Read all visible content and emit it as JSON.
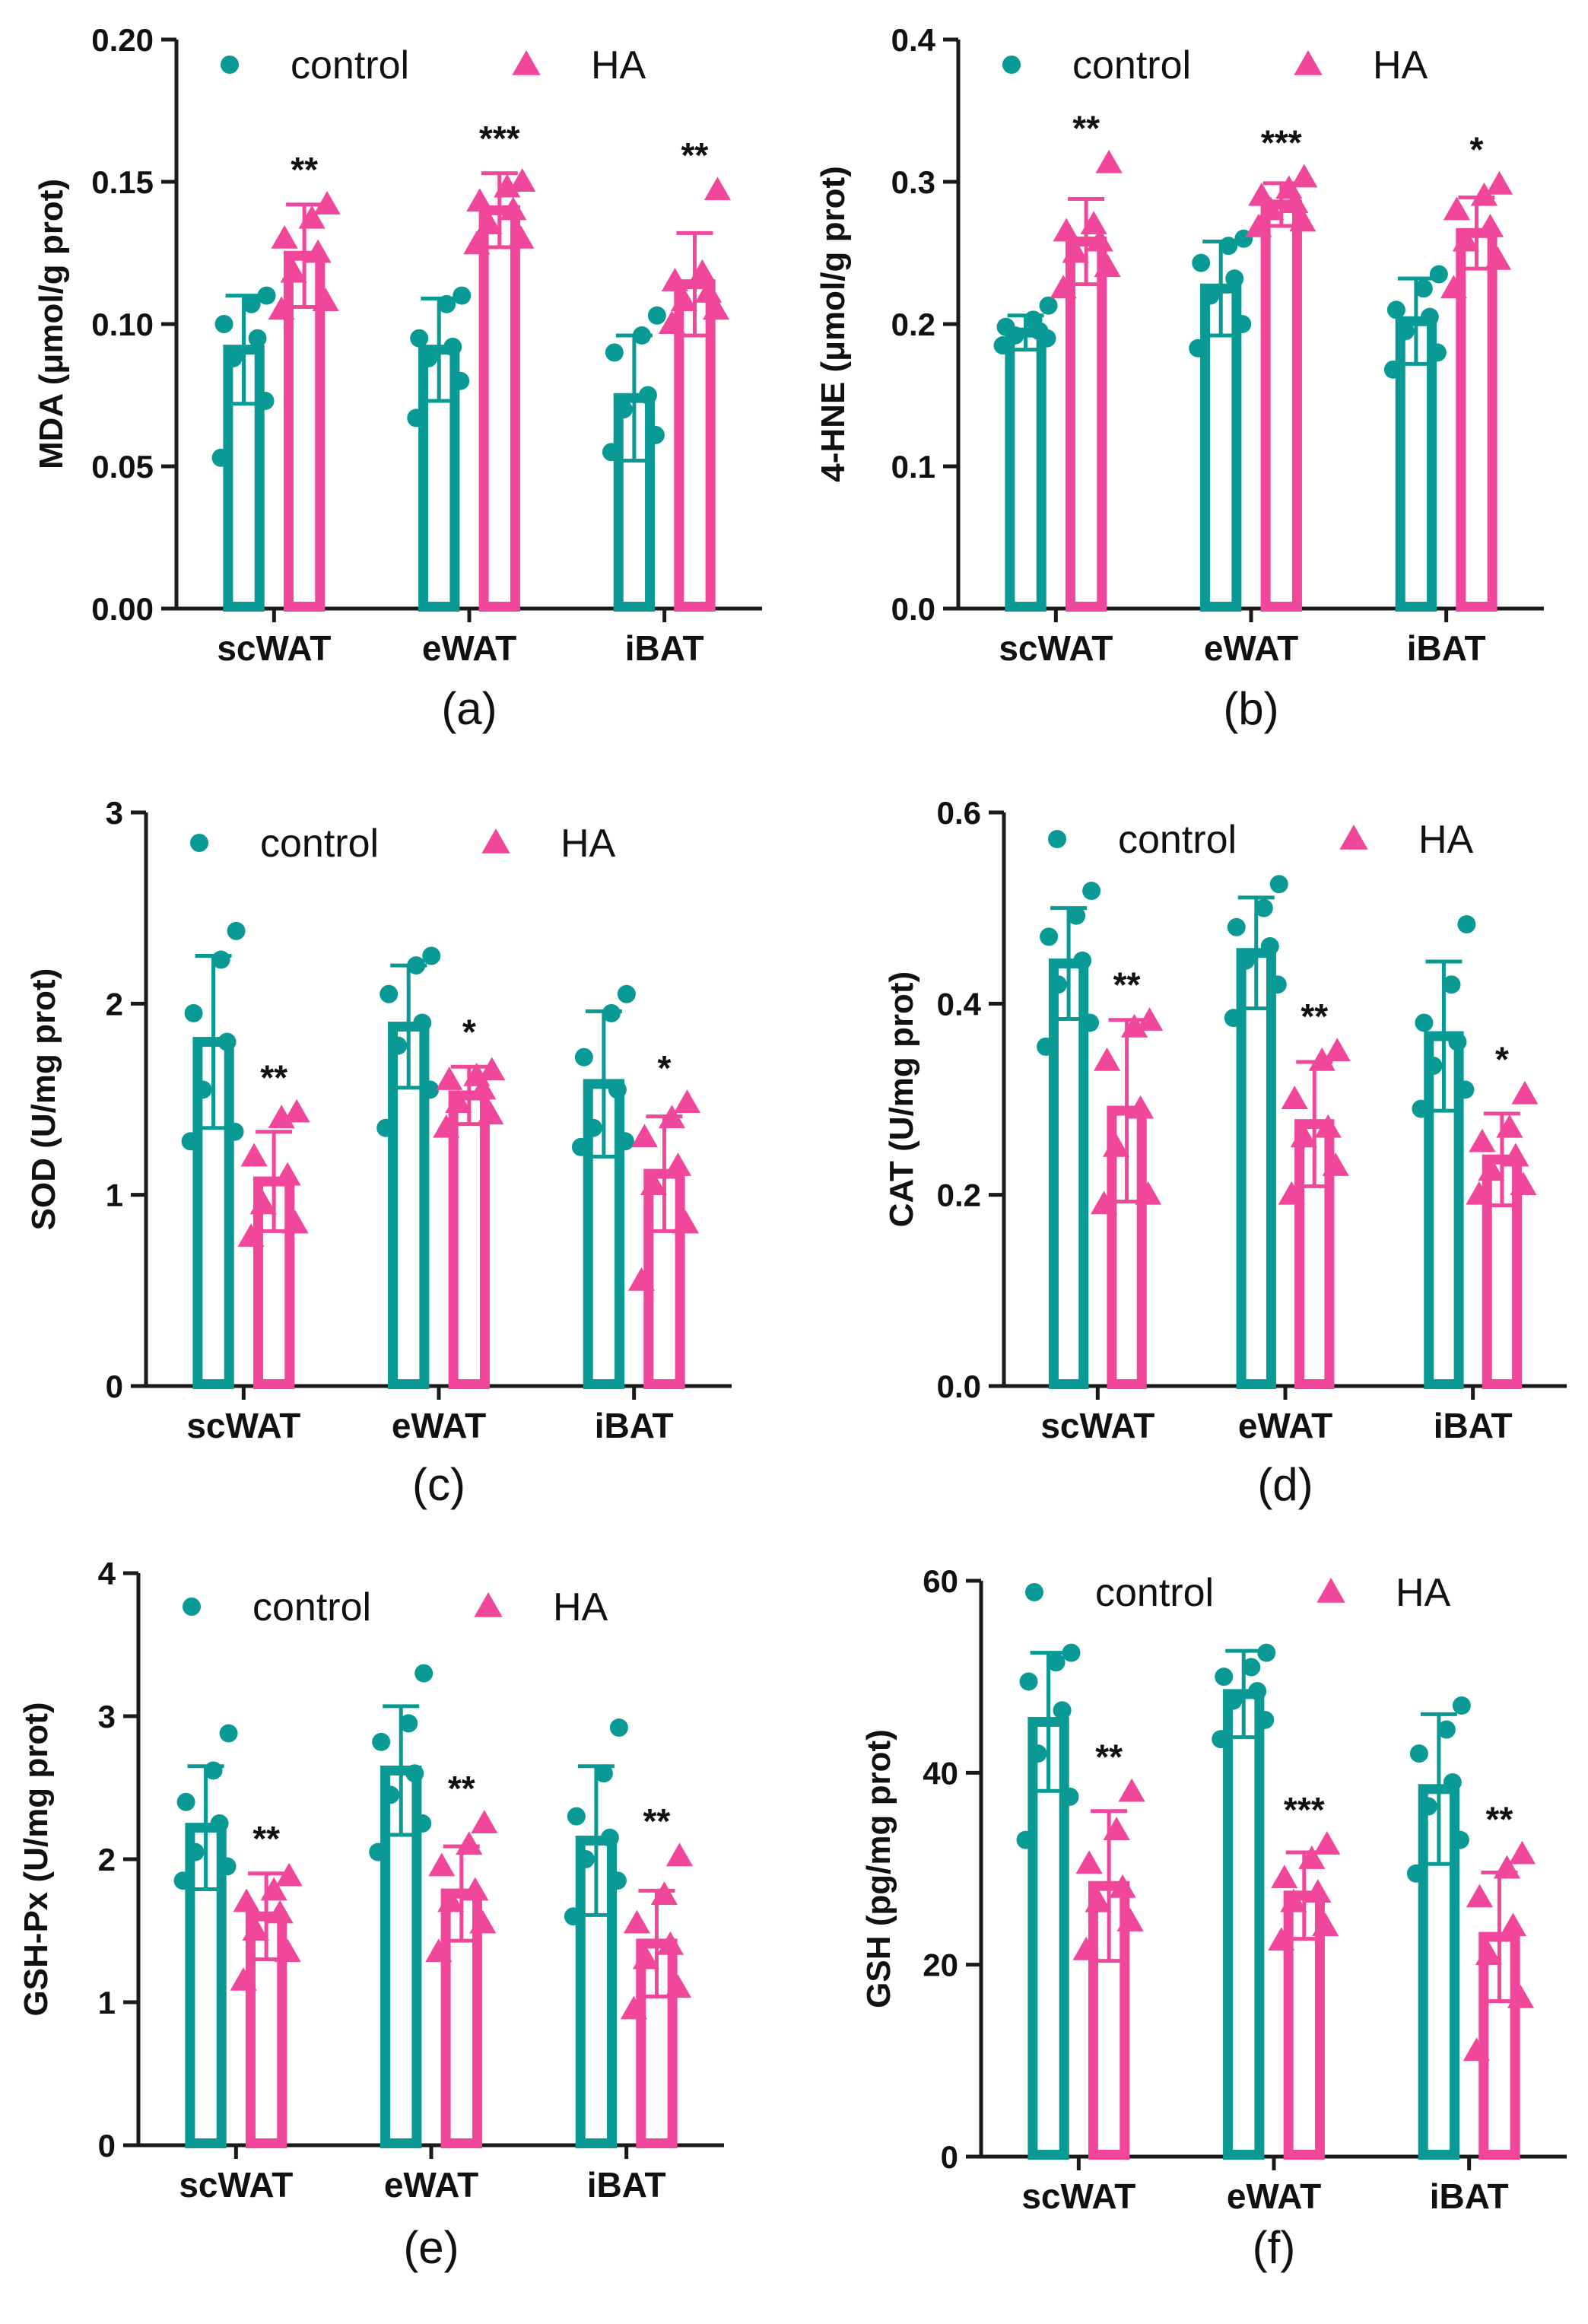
{
  "colors": {
    "control": "#0a9a96",
    "ha": "#f0479a",
    "axis": "#1a1a1a"
  },
  "chart_data": [
    {
      "type": "bar",
      "panel_label": "(a)",
      "ylabel": "MDA (μmol/g prot)",
      "categories": [
        "scWAT",
        "eWAT",
        "iBAT"
      ],
      "ylim": [
        0,
        0.2
      ],
      "yticks": [
        "0.00",
        "0.05",
        "0.10",
        "0.15",
        "0.20"
      ],
      "legend": [
        "control",
        "HA"
      ],
      "series": [
        {
          "name": "control",
          "values": [
            0.091,
            0.091,
            0.074
          ],
          "errors": [
            0.019,
            0.018,
            0.022
          ],
          "points": [
            [
              0.053,
              0.073,
              0.088,
              0.095,
              0.1,
              0.107,
              0.11
            ],
            [
              0.067,
              0.08,
              0.088,
              0.092,
              0.095,
              0.107,
              0.11
            ],
            [
              0.055,
              0.061,
              0.07,
              0.075,
              0.09,
              0.096,
              0.103
            ]
          ]
        },
        {
          "name": "HA",
          "values": [
            0.124,
            0.14,
            0.114
          ],
          "errors": [
            0.018,
            0.013,
            0.018
          ],
          "points": [
            [
              0.105,
              0.108,
              0.118,
              0.125,
              0.13,
              0.137,
              0.142
            ],
            [
              0.128,
              0.13,
              0.135,
              0.14,
              0.143,
              0.148,
              0.15
            ],
            [
              0.1,
              0.105,
              0.108,
              0.111,
              0.115,
              0.118,
              0.147
            ]
          ]
        }
      ],
      "significance": [
        "**",
        "***",
        "**"
      ]
    },
    {
      "type": "bar",
      "panel_label": "(b)",
      "ylabel": "4-HNE (μmol/g prot)",
      "categories": [
        "scWAT",
        "eWAT",
        "iBAT"
      ],
      "ylim": [
        0,
        0.4
      ],
      "yticks": [
        "0.0",
        "0.1",
        "0.2",
        "0.3",
        "0.4"
      ],
      "legend": [
        "control",
        "HA"
      ],
      "series": [
        {
          "name": "control",
          "values": [
            0.194,
            0.225,
            0.202
          ],
          "errors": [
            0.012,
            0.033,
            0.03
          ],
          "points": [
            [
              0.185,
              0.19,
              0.192,
              0.195,
              0.198,
              0.203,
              0.213
            ],
            [
              0.183,
              0.2,
              0.22,
              0.232,
              0.243,
              0.255,
              0.26
            ],
            [
              0.168,
              0.18,
              0.195,
              0.205,
              0.21,
              0.225,
              0.235
            ]
          ]
        },
        {
          "name": "HA",
          "values": [
            0.258,
            0.284,
            0.264
          ],
          "errors": [
            0.03,
            0.015,
            0.025
          ],
          "points": [
            [
              0.225,
              0.24,
              0.25,
              0.258,
              0.265,
              0.27,
              0.313
            ],
            [
              0.268,
              0.272,
              0.28,
              0.285,
              0.29,
              0.295,
              0.303
            ],
            [
              0.225,
              0.245,
              0.258,
              0.268,
              0.28,
              0.29,
              0.298
            ]
          ]
        }
      ],
      "significance": [
        "**",
        "***",
        "*"
      ]
    },
    {
      "type": "bar",
      "panel_label": "(c)",
      "ylabel": "SOD (U/mg prot)",
      "categories": [
        "scWAT",
        "eWAT",
        "iBAT"
      ],
      "ylim": [
        0,
        3
      ],
      "yticks": [
        "0",
        "1",
        "2",
        "3"
      ],
      "legend": [
        "control",
        "HA"
      ],
      "series": [
        {
          "name": "control",
          "values": [
            1.8,
            1.88,
            1.58
          ],
          "errors": [
            0.45,
            0.32,
            0.38
          ],
          "points": [
            [
              1.28,
              1.33,
              1.55,
              1.8,
              1.95,
              2.23,
              2.38
            ],
            [
              1.35,
              1.55,
              1.78,
              1.9,
              2.05,
              2.2,
              2.25
            ],
            [
              1.25,
              1.28,
              1.35,
              1.55,
              1.72,
              1.95,
              2.05
            ]
          ]
        },
        {
          "name": "HA",
          "values": [
            1.07,
            1.52,
            1.11
          ],
          "errors": [
            0.26,
            0.15,
            0.3
          ],
          "points": [
            [
              0.78,
              0.85,
              0.95,
              1.1,
              1.2,
              1.4,
              1.43
            ],
            [
              1.35,
              1.42,
              1.48,
              1.55,
              1.6,
              1.62,
              1.65
            ],
            [
              0.55,
              0.85,
              1.05,
              1.15,
              1.3,
              1.4,
              1.48
            ]
          ]
        }
      ],
      "significance": [
        "**",
        "*",
        "*"
      ]
    },
    {
      "type": "bar",
      "panel_label": "(d)",
      "ylabel": "CAT (U/mg prot)",
      "categories": [
        "scWAT",
        "eWAT",
        "iBAT"
      ],
      "ylim": [
        0,
        0.6
      ],
      "yticks": [
        "0.0",
        "0.2",
        "0.4",
        "0.6"
      ],
      "legend": [
        "control",
        "HA"
      ],
      "series": [
        {
          "name": "control",
          "values": [
            0.442,
            0.453,
            0.366
          ],
          "errors": [
            0.058,
            0.058,
            0.078
          ],
          "points": [
            [
              0.355,
              0.38,
              0.42,
              0.445,
              0.47,
              0.492,
              0.518
            ],
            [
              0.385,
              0.42,
              0.445,
              0.46,
              0.48,
              0.5,
              0.525
            ],
            [
              0.29,
              0.31,
              0.335,
              0.36,
              0.38,
              0.42,
              0.483
            ]
          ]
        },
        {
          "name": "HA",
          "values": [
            0.288,
            0.274,
            0.237
          ],
          "errors": [
            0.095,
            0.065,
            0.048
          ],
          "points": [
            [
              0.19,
              0.2,
              0.25,
              0.29,
              0.34,
              0.375,
              0.382
            ],
            [
              0.2,
              0.23,
              0.26,
              0.27,
              0.3,
              0.34,
              0.35
            ],
            [
              0.2,
              0.21,
              0.225,
              0.24,
              0.255,
              0.27,
              0.305
            ]
          ]
        }
      ],
      "significance": [
        "**",
        "**",
        "*"
      ]
    },
    {
      "type": "bar",
      "panel_label": "(e)",
      "ylabel": "GSH-Px (U/mg prot)",
      "categories": [
        "scWAT",
        "eWAT",
        "iBAT"
      ],
      "ylim": [
        0,
        4
      ],
      "yticks": [
        "0",
        "1",
        "2",
        "3",
        "4"
      ],
      "legend": [
        "control",
        "HA"
      ],
      "series": [
        {
          "name": "control",
          "values": [
            2.22,
            2.62,
            2.13
          ],
          "errors": [
            0.43,
            0.45,
            0.52
          ],
          "points": [
            [
              1.85,
              1.95,
              2.05,
              2.25,
              2.4,
              2.62,
              2.88
            ],
            [
              2.05,
              2.25,
              2.45,
              2.6,
              2.82,
              2.95,
              3.3
            ],
            [
              1.6,
              1.85,
              2.0,
              2.15,
              2.3,
              2.6,
              2.92
            ]
          ]
        },
        {
          "name": "HA",
          "values": [
            1.6,
            1.76,
            1.41
          ],
          "errors": [
            0.3,
            0.33,
            0.37
          ],
          "points": [
            [
              1.15,
              1.35,
              1.5,
              1.62,
              1.7,
              1.78,
              1.88
            ],
            [
              1.35,
              1.55,
              1.7,
              1.78,
              1.95,
              2.1,
              2.25
            ],
            [
              0.95,
              1.1,
              1.3,
              1.4,
              1.55,
              1.75,
              2.02
            ]
          ]
        }
      ],
      "significance": [
        "**",
        "**",
        "**"
      ]
    },
    {
      "type": "bar",
      "panel_label": "(f)",
      "ylabel": "GSH (pg/mg prot)",
      "categories": [
        "scWAT",
        "eWAT",
        "iBAT"
      ],
      "ylim": [
        0,
        60
      ],
      "yticks": [
        "0",
        "20",
        "40",
        "60"
      ],
      "legend": [
        "control",
        "HA"
      ],
      "series": [
        {
          "name": "control",
          "values": [
            45.3,
            48.2,
            38.3
          ],
          "errors": [
            7.2,
            4.5,
            7.8
          ],
          "points": [
            [
              33.0,
              37.5,
              42.0,
              46.5,
              49.5,
              51.5,
              52.5
            ],
            [
              43.5,
              45.5,
              47.5,
              48.5,
              50.0,
              51.0,
              52.5
            ],
            [
              29.5,
              33.0,
              36.5,
              39.0,
              42.0,
              44.5,
              47.0
            ]
          ]
        },
        {
          "name": "HA",
          "values": [
            28.2,
            27.2,
            22.9
          ],
          "errors": [
            7.8,
            4.5,
            6.7
          ],
          "points": [
            [
              21.5,
              24.5,
              26.5,
              28.0,
              30.5,
              34.0,
              38.0
            ],
            [
              22.5,
              24.0,
              26.5,
              27.5,
              29.0,
              31.0,
              32.5
            ],
            [
              11.0,
              16.5,
              21.0,
              24.0,
              27.0,
              30.0,
              31.5
            ]
          ]
        }
      ],
      "significance": [
        "**",
        "***",
        "**"
      ]
    }
  ]
}
